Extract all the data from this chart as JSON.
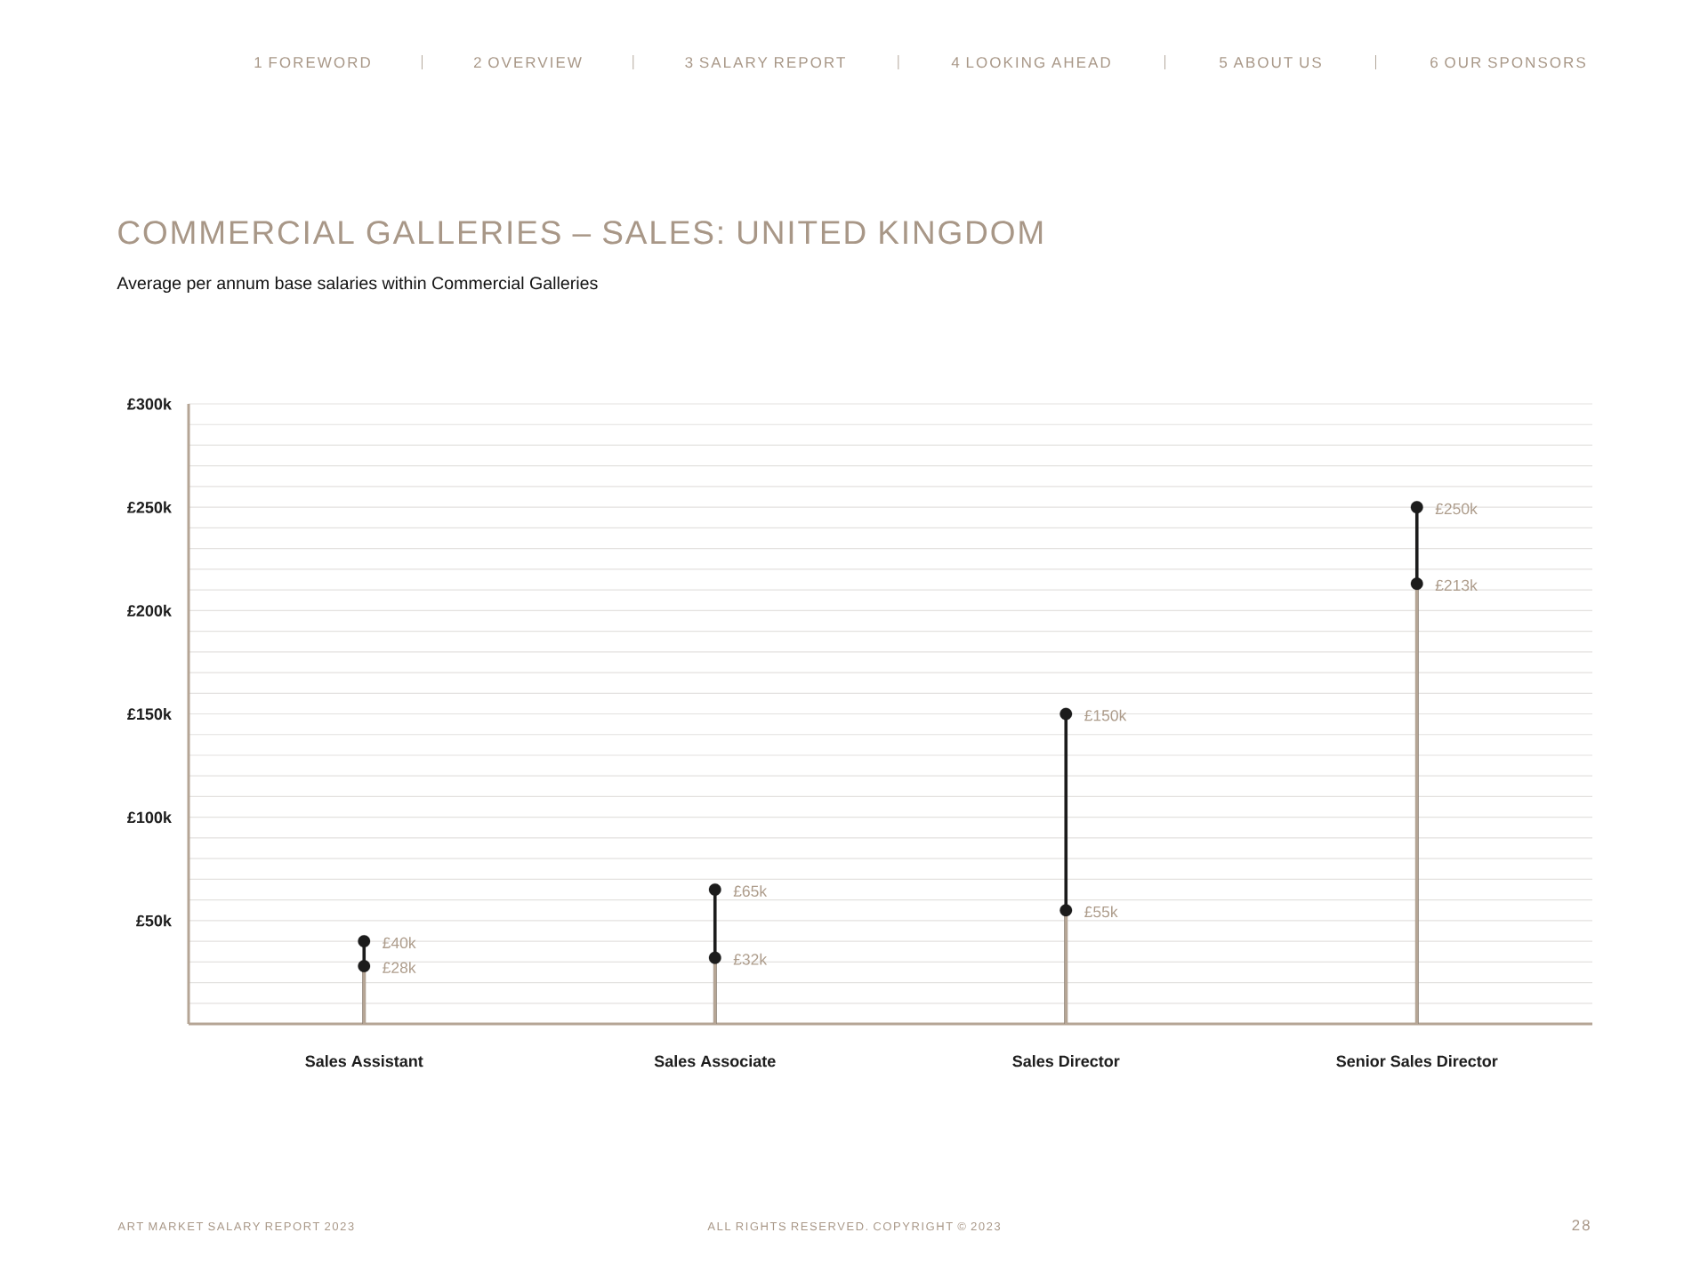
{
  "chart_data": {
    "type": "lollipop",
    "title": "COMMERCIAL GALLERIES – SALES: UNITED KINGDOM",
    "subtitle": "Average per annum base salaries within Commercial Galleries",
    "categories": [
      "Sales Assistant",
      "Sales Associate",
      "Sales Director",
      "Senior Sales Director"
    ],
    "series": [
      {
        "color": "#1c1c1c",
        "values": [
          40,
          65,
          150,
          250
        ],
        "value_labels": [
          "£40k",
          "£65k",
          "£150k",
          "£250k"
        ]
      },
      {
        "color": "#1c1c1c",
        "values": [
          28,
          32,
          55,
          213
        ],
        "value_labels": [
          "£28k",
          "£32k",
          "£55k",
          "£213k"
        ]
      }
    ],
    "ylim": [
      0,
      300
    ],
    "yticks": [
      {
        "value": 10,
        "label": null
      },
      {
        "value": 20,
        "label": null
      },
      {
        "value": 30,
        "label": null
      },
      {
        "value": 40,
        "label": null
      },
      {
        "value": 50,
        "label": "£50k"
      },
      {
        "value": 60,
        "label": null
      },
      {
        "value": 70,
        "label": null
      },
      {
        "value": 80,
        "label": null
      },
      {
        "value": 90,
        "label": null
      },
      {
        "value": 100,
        "label": "£100k"
      },
      {
        "value": 110,
        "label": null
      },
      {
        "value": 120,
        "label": null
      },
      {
        "value": 130,
        "label": null
      },
      {
        "value": 140,
        "label": null
      },
      {
        "value": 150,
        "label": "£150k"
      },
      {
        "value": 160,
        "label": null
      },
      {
        "value": 170,
        "label": null
      },
      {
        "value": 180,
        "label": null
      },
      {
        "value": 190,
        "label": null
      },
      {
        "value": 200,
        "label": "£200k"
      },
      {
        "value": 210,
        "label": null
      },
      {
        "value": 220,
        "label": null
      },
      {
        "value": 230,
        "label": null
      },
      {
        "value": 240,
        "label": null
      },
      {
        "value": 250,
        "label": "£250k"
      },
      {
        "value": 260,
        "label": null
      },
      {
        "value": 270,
        "label": null
      },
      {
        "value": 280,
        "label": null
      },
      {
        "value": 290,
        "label": null
      },
      {
        "value": 300,
        "label": "£300k"
      }
    ],
    "grid": "y",
    "marker": "circle",
    "annotations": [
      "1 FOREWORD",
      "2 OVERVIEW",
      "3 SALARY REPORT",
      "4 LOOKING AHEAD",
      "5 ABOUT US",
      "6 OUR SPONSORS",
      "ART MARKET SALARY REPORT 2023",
      "ALL RIGHTS RESERVED. COPYRIGHT © 2023",
      "28"
    ]
  }
}
